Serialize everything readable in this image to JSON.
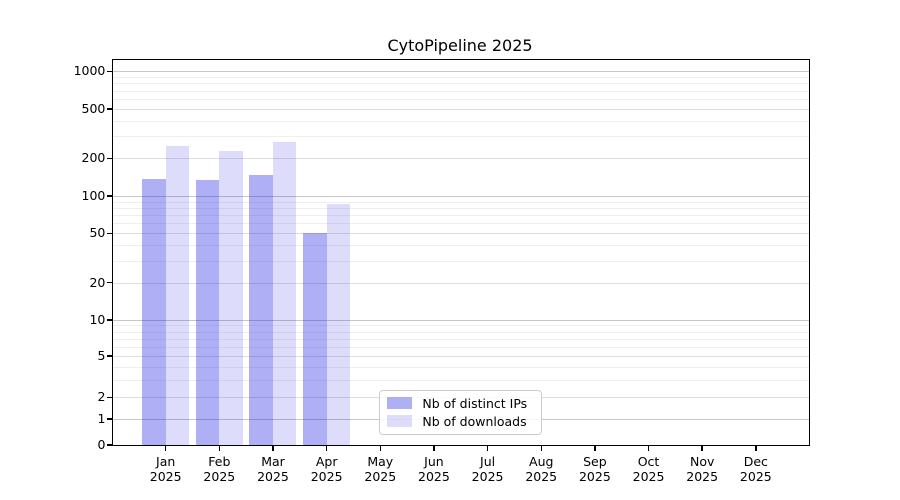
{
  "chart_data": {
    "type": "bar",
    "title": "CytoPipeline 2025",
    "year": "2025",
    "categories": [
      "Jan",
      "Feb",
      "Mar",
      "Apr",
      "May",
      "Jun",
      "Jul",
      "Aug",
      "Sep",
      "Oct",
      "Nov",
      "Dec"
    ],
    "series": [
      {
        "name": "Nb of distinct IPs",
        "color": "rgba(26,26,230,0.35)",
        "values": [
          136,
          134,
          146,
          50,
          null,
          null,
          null,
          null,
          null,
          null,
          null,
          null
        ]
      },
      {
        "name": "Nb of downloads",
        "color": "rgba(26,26,230,0.15)",
        "values": [
          250,
          228,
          270,
          86,
          null,
          null,
          null,
          null,
          null,
          null,
          null,
          null
        ]
      }
    ],
    "xlabel": "",
    "ylabel": "",
    "yscale": "asinh-symlog",
    "yticks": [
      0,
      1,
      2,
      5,
      10,
      20,
      50,
      100,
      200,
      500,
      1000
    ],
    "yticks_minor": [
      3,
      4,
      6,
      7,
      8,
      9,
      30,
      40,
      60,
      70,
      80,
      90,
      300,
      400,
      600,
      700,
      800,
      900
    ],
    "ylim": [
      0,
      1240
    ],
    "grid": true,
    "legend_position": "lower center",
    "colors": {
      "axis": "#000000",
      "grid_decade": "#c6c6c6",
      "grid_major": "#dedede",
      "grid_minor": "#efefef",
      "legend_border": "#cccccc",
      "background": "#ffffff"
    }
  }
}
